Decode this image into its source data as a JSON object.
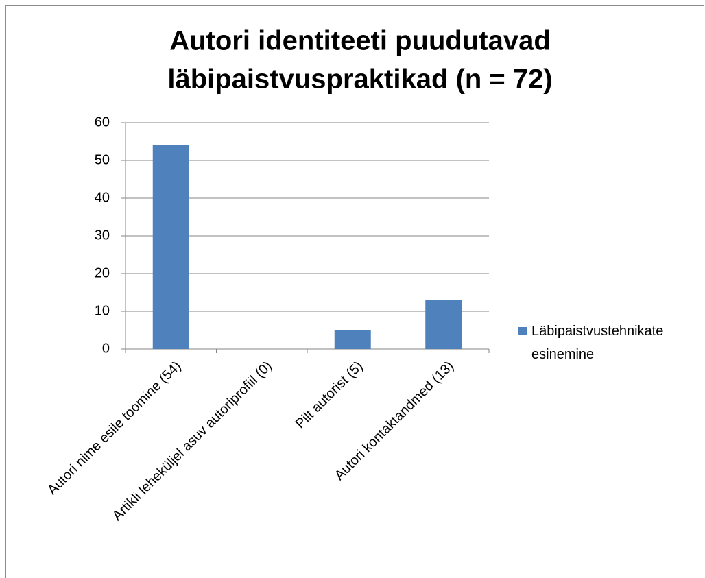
{
  "chart_data": {
    "type": "bar",
    "title": [
      "Autori identiteeti puudutavad",
      "läbipaistvuspraktikad (n = 72)"
    ],
    "categories": [
      "Autori nime esile toomine (54)",
      "Artikli leheküljel asuv autoriprofiil (0)",
      "Pilt autorist (5)",
      "Autori kontaktandmed (13)"
    ],
    "series": [
      {
        "name": "Läbipaistvustehnikate esinemine",
        "color": "#4f81bd",
        "values": [
          54,
          0,
          5,
          13
        ]
      }
    ],
    "ylim": [
      0,
      60
    ],
    "yticks": [
      0,
      10,
      20,
      30,
      40,
      50,
      60
    ],
    "grid": true,
    "legend": "right"
  }
}
